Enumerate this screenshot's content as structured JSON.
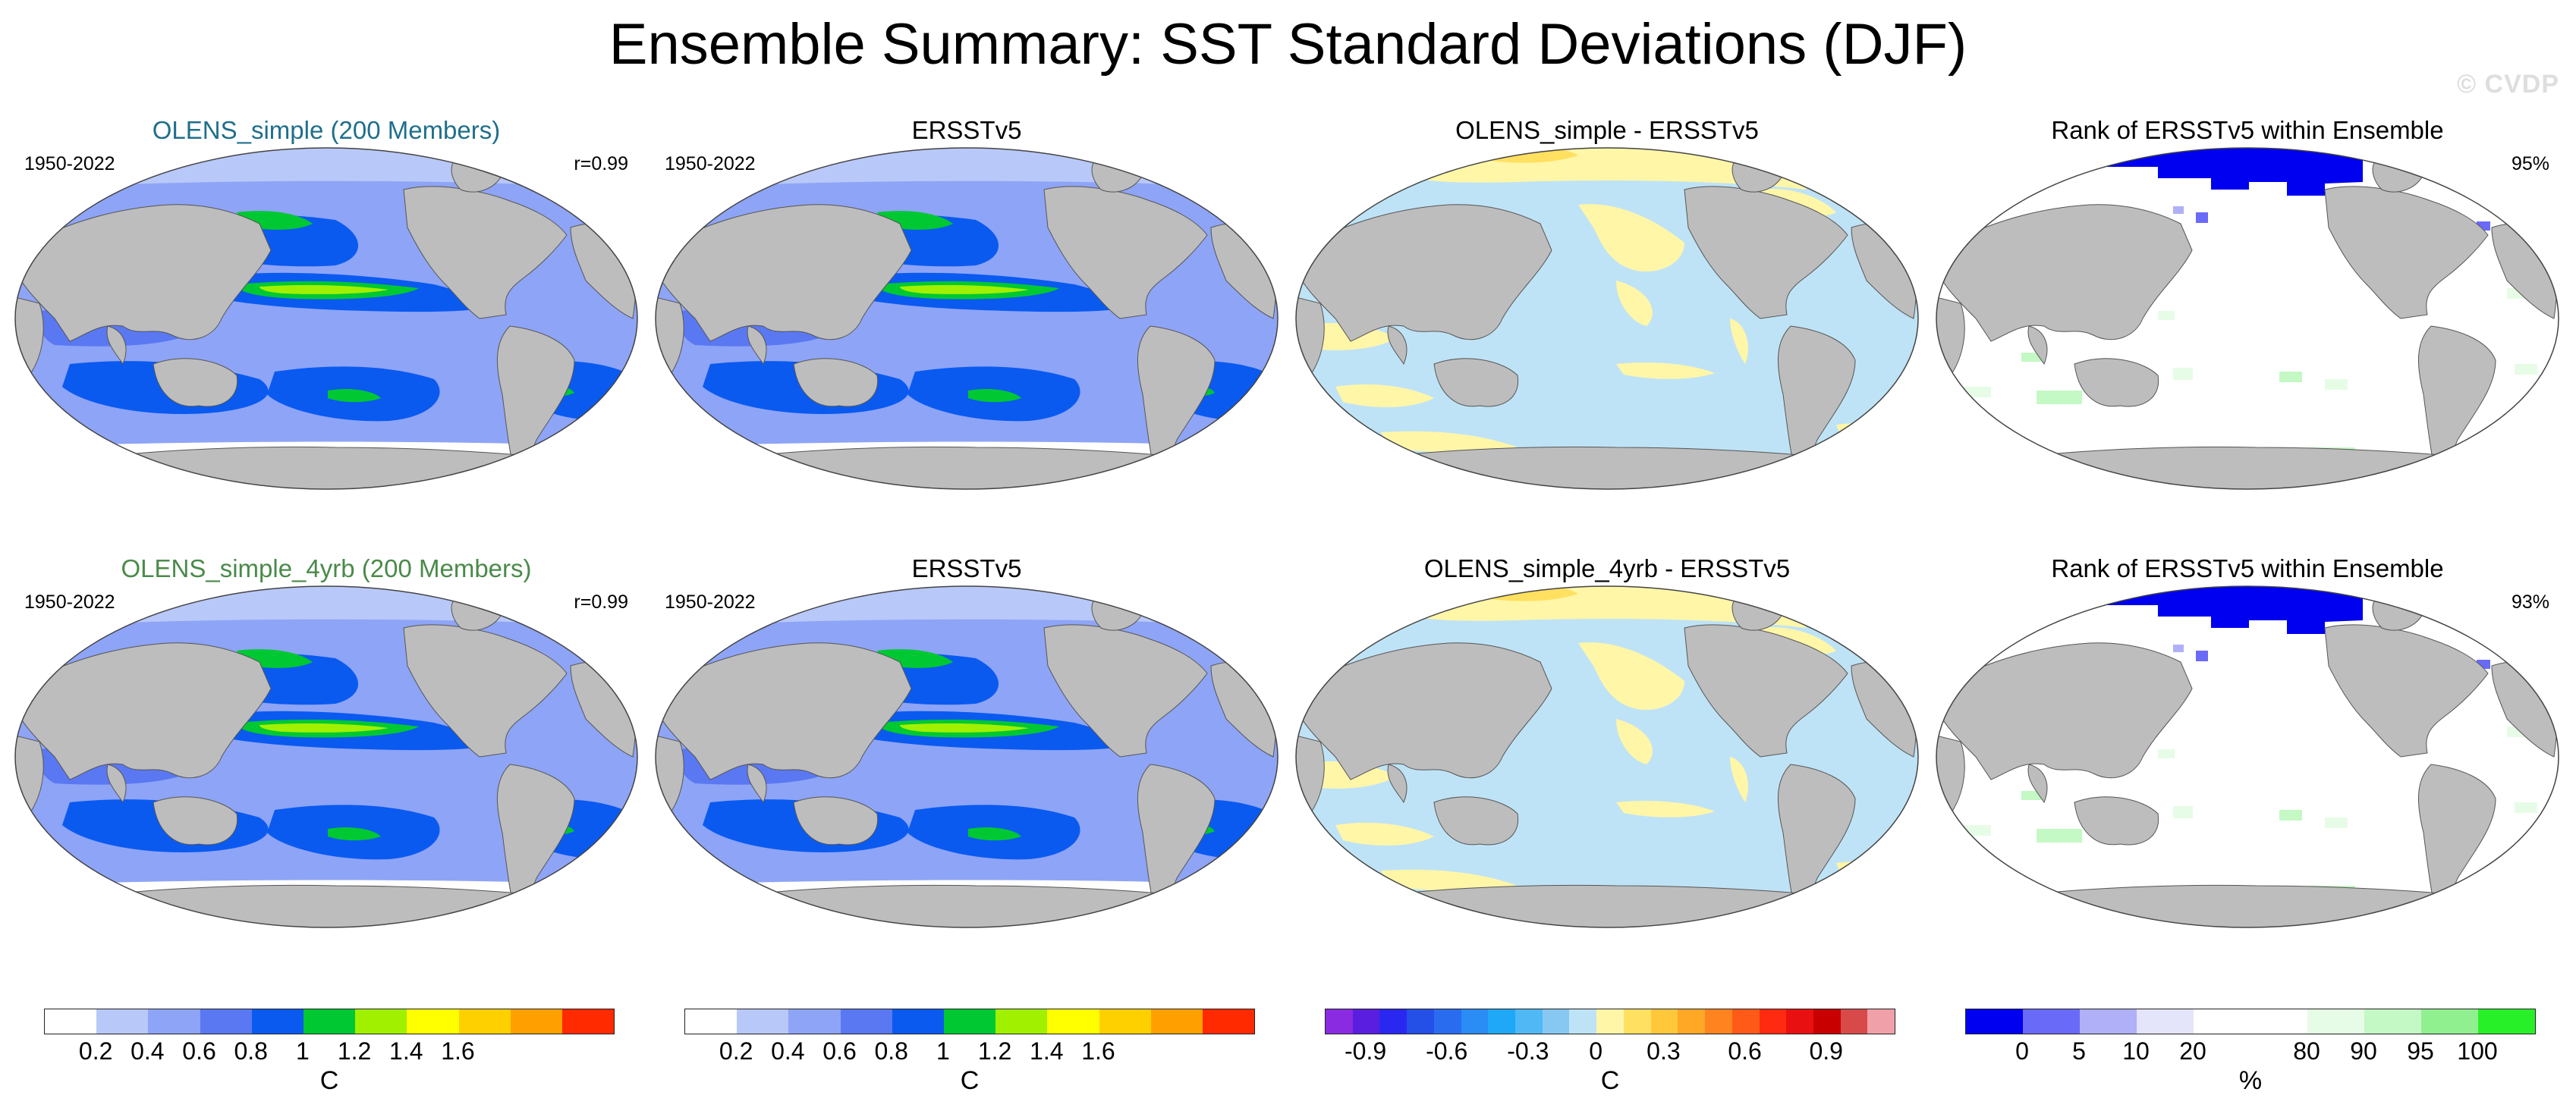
{
  "title": "Ensemble Summary: SST Standard Deviations (DJF)",
  "watermark": "© CVDP",
  "colors": {
    "land": "#bdbdbd",
    "ocean_sd_base": "#9db1f5",
    "ocean_diff_base": "#bfe3f6",
    "rank_ocean": "#ffffff"
  },
  "panels": [
    {
      "id": "p1",
      "type": "sd",
      "title": "OLENS_simple (200 Members)",
      "title_color": "#1f6f8b",
      "left_label": "1950-2022",
      "right_label": "r=0.99"
    },
    {
      "id": "p2",
      "type": "sd",
      "title": "ERSSTv5",
      "title_color": "#000000",
      "left_label": "1950-2022",
      "right_label": ""
    },
    {
      "id": "p3",
      "type": "diff",
      "title": "OLENS_simple - ERSSTv5",
      "title_color": "#000000",
      "left_label": "",
      "right_label": ""
    },
    {
      "id": "p4",
      "type": "rank",
      "title": "Rank of ERSSTv5 within Ensemble",
      "title_color": "#000000",
      "left_label": "",
      "right_label": "95%"
    },
    {
      "id": "p5",
      "type": "sd",
      "title": "OLENS_simple_4yrb (200 Members)",
      "title_color": "#4a8a4a",
      "left_label": "1950-2022",
      "right_label": "r=0.99"
    },
    {
      "id": "p6",
      "type": "sd",
      "title": "ERSSTv5",
      "title_color": "#000000",
      "left_label": "1950-2022",
      "right_label": ""
    },
    {
      "id": "p7",
      "type": "diff",
      "title": "OLENS_simple_4yrb - ERSSTv5",
      "title_color": "#000000",
      "left_label": "",
      "right_label": ""
    },
    {
      "id": "p8",
      "type": "rank",
      "title": "Rank of ERSSTv5 within Ensemble",
      "title_color": "#000000",
      "left_label": "",
      "right_label": "93%"
    }
  ],
  "colorbars": [
    {
      "id": "cb1",
      "unit": "C",
      "colors": [
        "#ffffff",
        "#b8c8f8",
        "#8ea4f6",
        "#5a78f2",
        "#0a5af0",
        "#00c832",
        "#a0f000",
        "#ffff00",
        "#ffd000",
        "#ffa000",
        "#ff2a00"
      ],
      "ticks": [
        "0.2",
        "0.4",
        "0.6",
        "0.8",
        "1",
        "1.2",
        "1.4",
        "1.6"
      ],
      "tick_positions": [
        1,
        2,
        3,
        4,
        5,
        6,
        7,
        8
      ]
    },
    {
      "id": "cb2",
      "unit": "C",
      "colors": [
        "#ffffff",
        "#b8c8f8",
        "#8ea4f6",
        "#5a78f2",
        "#0a5af0",
        "#00c832",
        "#a0f000",
        "#ffff00",
        "#ffd000",
        "#ffa000",
        "#ff2a00"
      ],
      "ticks": [
        "0.2",
        "0.4",
        "0.6",
        "0.8",
        "1",
        "1.2",
        "1.4",
        "1.6"
      ],
      "tick_positions": [
        1,
        2,
        3,
        4,
        5,
        6,
        7,
        8
      ]
    },
    {
      "id": "cb3",
      "unit": "C",
      "colors": [
        "#8a2be2",
        "#5a1ee0",
        "#2a28f0",
        "#2450e8",
        "#2a6cf0",
        "#2a8cf5",
        "#20a8f8",
        "#50b8f5",
        "#86c8f2",
        "#bfe3f6",
        "#fff6a8",
        "#ffe060",
        "#ffc83a",
        "#ffa826",
        "#ff8420",
        "#ff5a18",
        "#ff2a10",
        "#e81010",
        "#c80000",
        "#d84a4a",
        "#f0a0a8"
      ],
      "ticks": [
        "-0.9",
        "-0.6",
        "-0.3",
        "0",
        "0.3",
        "0.6",
        "0.9"
      ],
      "tick_positions": [
        1.5,
        4.5,
        7.5,
        10,
        12.5,
        15.5,
        18.5
      ]
    },
    {
      "id": "cb4",
      "unit": "%",
      "colors": [
        "#0000f0",
        "#6a6af8",
        "#b0b0f8",
        "#e4e4fa",
        "#ffffff",
        "#ffffff",
        "#e6fce6",
        "#c4f8c4",
        "#90f090",
        "#28f028"
      ],
      "ticks": [
        "0",
        "5",
        "10",
        "20",
        "80",
        "90",
        "95",
        "100"
      ],
      "tick_positions": [
        1,
        2,
        3,
        4,
        6,
        7,
        8,
        9
      ]
    }
  ]
}
